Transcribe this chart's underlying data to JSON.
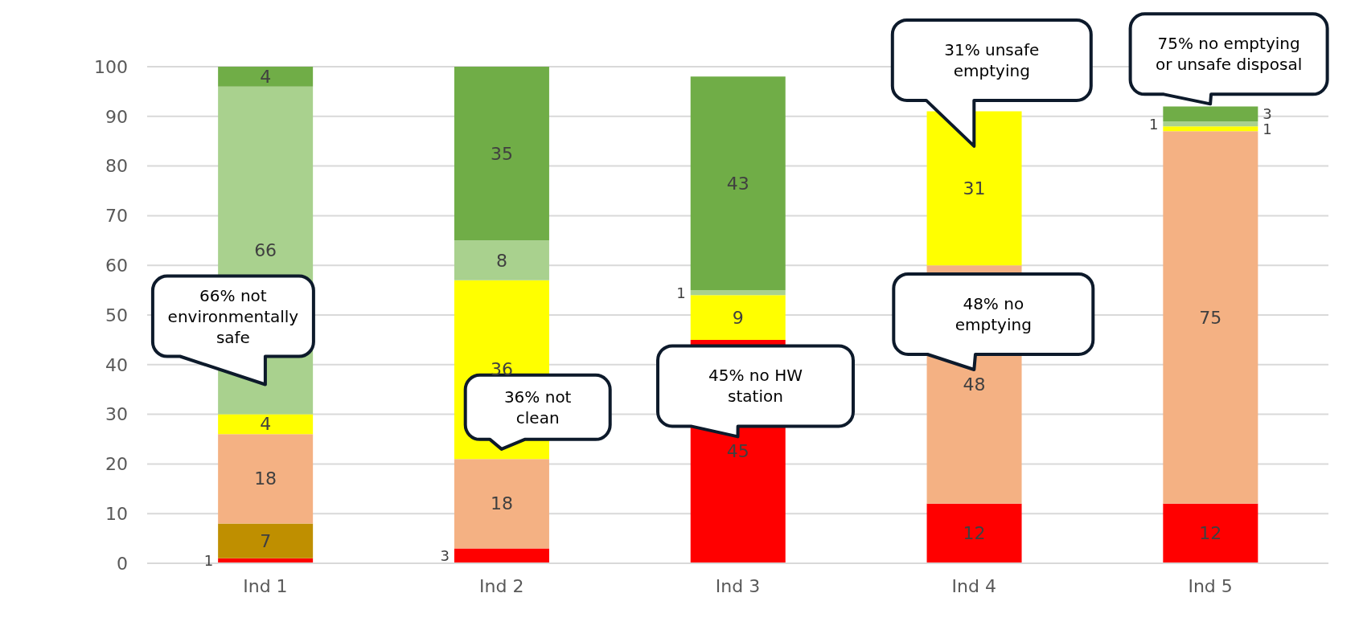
{
  "chart_data": {
    "type": "bar",
    "stacked": true,
    "data_labels": true,
    "grid": "y",
    "legend": false,
    "categories": [
      "Ind 1",
      "Ind 2",
      "Ind 3",
      "Ind 4",
      "Ind 5"
    ],
    "ylim": [
      0,
      100
    ],
    "yticks": [
      0,
      10,
      20,
      30,
      40,
      50,
      60,
      70,
      80,
      90,
      100
    ],
    "series": [
      {
        "color": "#ff0000",
        "values": [
          1,
          3,
          45,
          12,
          12
        ]
      },
      {
        "color": "#bf8f00",
        "values": [
          7,
          null,
          null,
          null,
          null
        ]
      },
      {
        "color": "#f4b183",
        "values": [
          18,
          18,
          null,
          48,
          75
        ]
      },
      {
        "color": "#ffff00",
        "values": [
          4,
          36,
          9,
          31,
          1
        ]
      },
      {
        "color": "#a9d18e",
        "values": [
          66,
          8,
          1,
          null,
          1
        ]
      },
      {
        "color": "#70ad47",
        "values": [
          4,
          35,
          43,
          null,
          3
        ]
      }
    ],
    "annotations": [
      "66% not environmentally safe",
      "36% not clean",
      "45% no HW station",
      "31% unsafe emptying",
      "48% no emptying",
      "75% no emptying or unsafe disposal"
    ]
  }
}
